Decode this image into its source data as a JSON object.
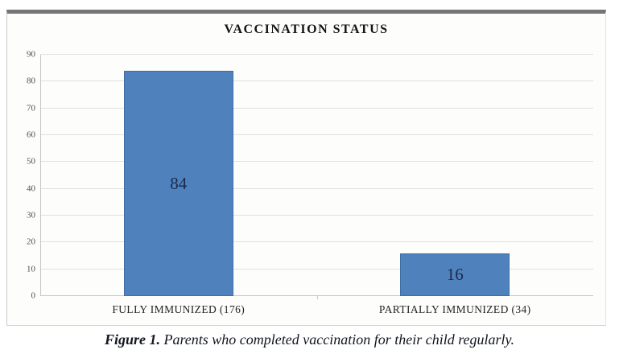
{
  "chart_data": {
    "type": "bar",
    "title": "VACCINATION STATUS",
    "categories": [
      "FULLY IMMUNIZED (176)",
      "PARTIALLY IMMUNIZED (34)"
    ],
    "values": [
      84,
      16
    ],
    "yticks": [
      0,
      10,
      20,
      30,
      40,
      50,
      60,
      70,
      80,
      90
    ],
    "ylim": [
      0,
      90
    ],
    "xlabel": "",
    "ylabel": "",
    "grid": "horizontal",
    "legend": "none",
    "bar_color": "#4f81bd",
    "bar_border_color": "#3f6ea5",
    "value_label_color": "#1b2a4a"
  },
  "caption": {
    "label": "Figure 1.",
    "text": " Parents who completed vaccination for their child regularly."
  }
}
